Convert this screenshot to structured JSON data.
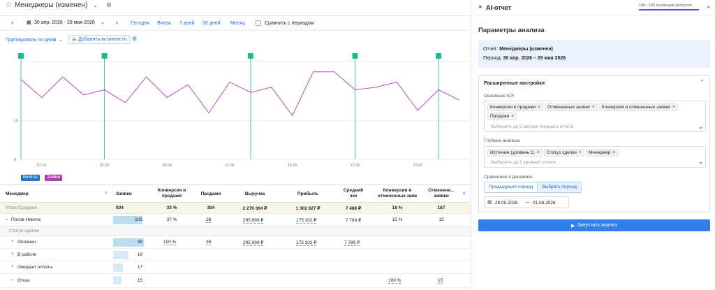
{
  "header": {
    "title": "Менеджеры (изменен)"
  },
  "toolbar": {
    "date_range": "30 апр. 2026 - 29 мая 2026",
    "quick": [
      "Сегодня",
      "Вчера",
      "7 дней",
      "30 дней",
      "Месяц"
    ],
    "compare_label": "Сравнить с периодом"
  },
  "controls": {
    "group_by": "Группировать по дням",
    "add_activity": "Добавить активность"
  },
  "chart_data": {
    "type": "line",
    "y_ticks": [
      "0",
      "15"
    ],
    "x_ticks": [
      "02.05",
      "05.05",
      "08.05",
      "11.05",
      "14.05",
      "17.05",
      "20.05"
    ],
    "y_min": 0,
    "y_max": 38,
    "series": [
      {
        "values": [
          31,
          24,
          32,
          25,
          27,
          22,
          32,
          24,
          29,
          18,
          30,
          26,
          28,
          17,
          34,
          34,
          27,
          28,
          30,
          19,
          27,
          23
        ]
      }
    ],
    "markers": [
      0,
      4,
      11,
      16,
      20
    ]
  },
  "legend": {
    "visits": "Визиты",
    "requests": "Заявки"
  },
  "table": {
    "headers": [
      "Менеджер",
      "Заявки",
      "Конверсия в продажи",
      "Продажи",
      "Выручка",
      "Прибыль",
      "Средний чек",
      "Конверсия в отмененные заяв",
      "Отмененн... заявки"
    ],
    "total": {
      "label": "Итого/Среднее",
      "values": [
        "934",
        "33 %",
        "304",
        "2 276 364 ₽",
        "1 302 827 ₽",
        "7 488 ₽",
        "18 %",
        "167"
      ]
    },
    "manager": {
      "label": "Попов Никита",
      "values": [
        "103",
        "37 %",
        "38",
        "295 999 ₽",
        "175 302 ₽",
        "7 789 ₽",
        "15 %",
        "15"
      ]
    },
    "group_label": "Статус сделки",
    "rows": [
      {
        "label": "Оплачен",
        "bar": "38",
        "conv": "100 %",
        "sales": "38",
        "rev": "295 999 ₽",
        "profit": "175 302 ₽",
        "avg": "7 789 ₽",
        "cc": "",
        "cancel": ""
      },
      {
        "label": "В работе",
        "bar": "19",
        "conv": "",
        "sales": "",
        "rev": "",
        "profit": "",
        "avg": "",
        "cc": "",
        "cancel": ""
      },
      {
        "label": "Ожидает оплаты",
        "bar": "17",
        "conv": "",
        "sales": "",
        "rev": "",
        "profit": "",
        "avg": "",
        "cc": "",
        "cancel": ""
      },
      {
        "label": "Отказ",
        "bar": "15",
        "conv": "",
        "sales": "",
        "rev": "",
        "profit": "",
        "avg": "",
        "cc": "100 %",
        "cancel": "15"
      }
    ]
  },
  "ai": {
    "title": "AI-отчет",
    "quota": "100 / 100 генераций доступно",
    "quota_fraction": 1.0,
    "params_title": "Параметры анализа",
    "report_label": "Отчет:",
    "report_value": "Менеджеры (изменен)",
    "period_label": "Период:",
    "period_value": "30 апр. 2026 – 29 мая 2026",
    "advanced": "Расширенные настройки",
    "kpi_label": "Основные KPI",
    "kpi_chips": [
      "Конверсия в продажи",
      "Отмененные заявки",
      "Конверсия в отмененные заявки",
      "Продажи"
    ],
    "kpi_placeholder": "Выберите до 5 метрик текущего отчета",
    "depth_label": "Глубина анализа",
    "depth_chips": [
      "Источник (уровень 1)",
      "Статус сделки",
      "Менеджер"
    ],
    "depth_placeholder": "Выберите до 3 уровней отчета",
    "dyn_label": "Сравнение в динамике",
    "tab_prev": "Предыдущий период",
    "tab_pick": "Выбрать период",
    "date_from": "29.05.2026",
    "date_to": "01.06.2026",
    "run": "Запустить анализ"
  },
  "colors": {
    "accent": "#1a6fd0",
    "line": "#b34fc1",
    "marker": "#1fb890",
    "visits": "#1e78c8",
    "requests": "#b43bb5",
    "run": "#2f80ed"
  }
}
